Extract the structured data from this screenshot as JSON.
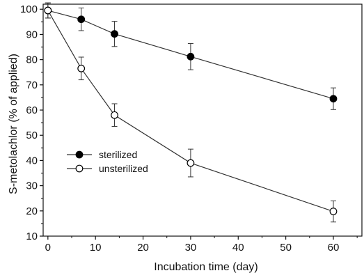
{
  "chart_data": {
    "type": "line",
    "xlabel": "Incubation time (day)",
    "ylabel": "S-metolachlor (% of applied)",
    "xlim": [
      -1,
      66
    ],
    "ylim": [
      10,
      102
    ],
    "xticks": [
      0,
      10,
      20,
      30,
      40,
      50,
      60
    ],
    "yticks": [
      10,
      20,
      30,
      40,
      50,
      60,
      70,
      80,
      90,
      100
    ],
    "legend_position": "left-middle",
    "grid": false,
    "series": [
      {
        "name": "sterilized",
        "marker": "filled-circle",
        "color": "#000000",
        "x": [
          0,
          7,
          14,
          30,
          60
        ],
        "y": [
          99.5,
          96,
          90.2,
          81.2,
          64.5
        ],
        "error": [
          3,
          4.5,
          5,
          5.2,
          4.3
        ]
      },
      {
        "name": "unsterilized",
        "marker": "open-circle",
        "color": "#000000",
        "x": [
          0,
          7,
          14,
          30,
          60
        ],
        "y": [
          99.5,
          76.5,
          58,
          39,
          19.8
        ],
        "error": [
          3,
          4.5,
          4.5,
          5.5,
          4.2
        ]
      }
    ]
  }
}
